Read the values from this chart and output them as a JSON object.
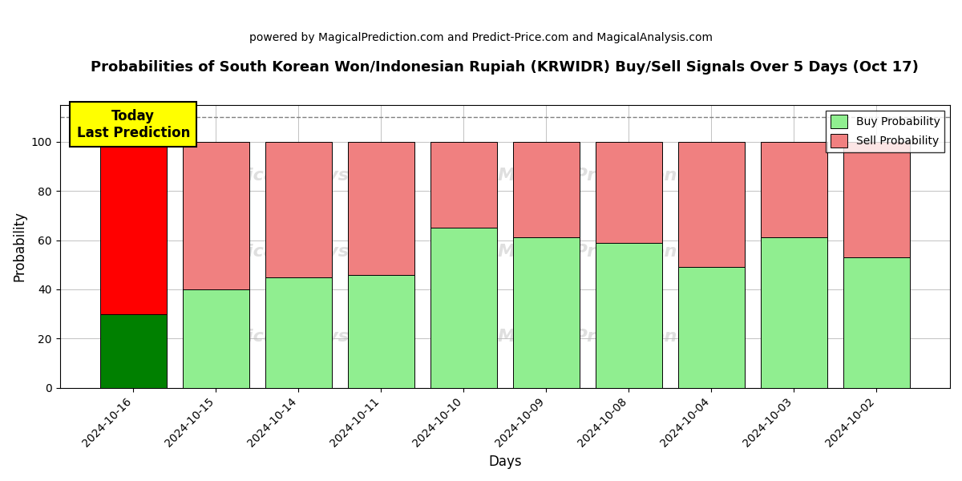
{
  "title": "Probabilities of South Korean Won/Indonesian Rupiah (KRWIDR) Buy/Sell Signals Over 5 Days (Oct 17)",
  "subtitle": "powered by MagicalPrediction.com and Predict-Price.com and MagicalAnalysis.com",
  "xlabel": "Days",
  "ylabel": "Probability",
  "categories": [
    "2024-10-16",
    "2024-10-15",
    "2024-10-14",
    "2024-10-11",
    "2024-10-10",
    "2024-10-09",
    "2024-10-08",
    "2024-10-04",
    "2024-10-03",
    "2024-10-02"
  ],
  "buy_values": [
    30,
    40,
    45,
    46,
    65,
    61,
    59,
    49,
    61,
    53
  ],
  "sell_values": [
    70,
    60,
    55,
    54,
    35,
    39,
    41,
    51,
    39,
    47
  ],
  "today_buy_color": "#008000",
  "today_sell_color": "#FF0000",
  "other_buy_color": "#90EE90",
  "other_sell_color": "#F08080",
  "today_label_bg": "#FFFF00",
  "today_label_text": "Today\nLast Prediction",
  "dashed_line_y": 110,
  "ylim": [
    0,
    115
  ],
  "yticks": [
    0,
    20,
    40,
    60,
    80,
    100
  ],
  "background_color": "#ffffff",
  "grid_color": "#aaaaaa",
  "legend_buy": "Buy Probability",
  "legend_sell": "Sell Probability",
  "figsize": [
    12.0,
    6.0
  ],
  "dpi": 100
}
